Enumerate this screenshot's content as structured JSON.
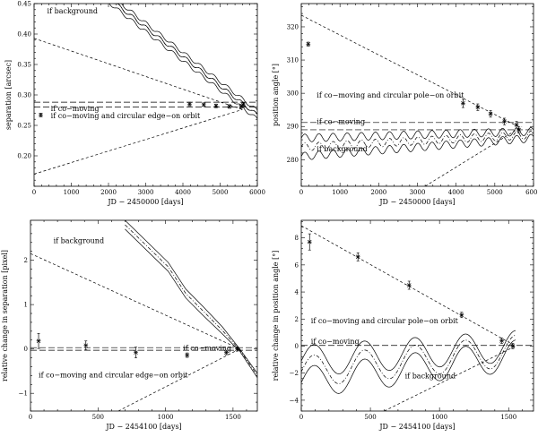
{
  "chart_data": [
    {
      "type": "line",
      "title": "",
      "xlabel": "JD − 2450000 [days]",
      "ylabel": "separation [arcsec]",
      "xlim": [
        0,
        6000
      ],
      "ylim": [
        0.15,
        0.45
      ],
      "xticks": [
        0,
        1000,
        2000,
        3000,
        4000,
        5000,
        6000
      ],
      "xtick_labels": [
        "0",
        "1000",
        "2000",
        "3000",
        "4000",
        "5000",
        "6000"
      ],
      "yticks": [
        0.2,
        0.25,
        0.3,
        0.35,
        0.4,
        0.45
      ],
      "ytick_labels": [
        "0.20",
        "0.25",
        "0.30",
        "0.35",
        "0.40",
        "0.45"
      ],
      "annotations": [
        {
          "text": "if background",
          "x": 350,
          "y": 0.438
        },
        {
          "text": "if co−moving",
          "x": 450,
          "y": 0.278
        },
        {
          "text": "if co−moving and circular edge−on orbit",
          "x": 450,
          "y": 0.266
        }
      ],
      "data_points": {
        "name": "measurements",
        "x": [
          180,
          4180,
          4560,
          4890,
          5250,
          5560,
          5620
        ],
        "y": [
          0.267,
          0.285,
          0.284,
          0.282,
          0.281,
          0.281,
          0.284
        ],
        "yerr": [
          0.003,
          0.003,
          0.003,
          0.003,
          0.003,
          0.003,
          0.003
        ]
      },
      "series": [
        {
          "name": "background",
          "style": "solid",
          "x": [
            0,
            6000
          ],
          "y": [
            0.555,
            0.267
          ],
          "wiggle": 0.003,
          "period": 365
        },
        {
          "name": "background upper bound",
          "style": "solid",
          "x": [
            0,
            6000
          ],
          "y": [
            0.562,
            0.274
          ],
          "wiggle": 0.003,
          "period": 365
        },
        {
          "name": "background lower bound",
          "style": "solid",
          "x": [
            0,
            6000
          ],
          "y": [
            0.548,
            0.26
          ],
          "wiggle": 0.003,
          "period": 365
        },
        {
          "name": "background centre",
          "style": "dashdot",
          "x": [
            0,
            6000
          ],
          "y": [
            0.555,
            0.267
          ],
          "wiggle": 0.003,
          "period": 365
        },
        {
          "name": "co-moving upper",
          "style": "longdash",
          "x": [
            0,
            6000
          ],
          "y": [
            0.288,
            0.288
          ]
        },
        {
          "name": "co-moving lower",
          "style": "longdash",
          "x": [
            0,
            6000
          ],
          "y": [
            0.28,
            0.28
          ]
        },
        {
          "name": "edge-on orbit upper",
          "style": "dash",
          "x": [
            0,
            5600
          ],
          "y": [
            0.393,
            0.276
          ]
        },
        {
          "name": "edge-on orbit lower",
          "style": "dash",
          "x": [
            0,
            5600
          ],
          "y": [
            0.17,
            0.276
          ]
        }
      ]
    },
    {
      "type": "line",
      "title": "",
      "xlabel": "JD − 2450000 [days]",
      "ylabel": "position angle [°]",
      "xlim": [
        0,
        6000
      ],
      "ylim": [
        272,
        327
      ],
      "xticks": [
        0,
        1000,
        2000,
        3000,
        4000,
        5000,
        6000
      ],
      "xtick_labels": [
        "0",
        "1000",
        "2000",
        "3000",
        "4000",
        "5000",
        "6000"
      ],
      "yticks": [
        280,
        290,
        300,
        310,
        320
      ],
      "ytick_labels": [
        "280",
        "290",
        "300",
        "310",
        "320"
      ],
      "annotations": [
        {
          "text": "if co−moving and circular pole−on orbit",
          "x": 400,
          "y": 299.5
        },
        {
          "text": "if co−moving",
          "x": 400,
          "y": 291.5
        },
        {
          "text": "if background",
          "x": 400,
          "y": 283.3
        }
      ],
      "data_points": {
        "name": "measurements",
        "x": [
          180,
          4180,
          4560,
          4890,
          5250,
          5560,
          5620
        ],
        "y": [
          314.8,
          297.0,
          295.8,
          293.8,
          291.5,
          290.5,
          289.0
        ],
        "yerr": [
          0.6,
          1.3,
          1.0,
          1.0,
          1.0,
          1.0,
          1.0
        ]
      },
      "series": [
        {
          "name": "background upper",
          "style": "solid",
          "x": [
            0,
            6000
          ],
          "y": [
            286.5,
            288.5
          ],
          "wiggle": 1.2,
          "period": 365
        },
        {
          "name": "background centre",
          "style": "dashdot",
          "x": [
            0,
            6000
          ],
          "y": [
            283.8,
            287.5
          ],
          "wiggle": 1.2,
          "period": 365
        },
        {
          "name": "background lower",
          "style": "solid",
          "x": [
            0,
            6000
          ],
          "y": [
            281.0,
            286.5
          ],
          "wiggle": 1.2,
          "period": 365
        },
        {
          "name": "co-moving upper",
          "style": "longdash",
          "x": [
            0,
            6000
          ],
          "y": [
            291.2,
            291.2
          ]
        },
        {
          "name": "co-moving lower",
          "style": "longdash",
          "x": [
            0,
            6000
          ],
          "y": [
            289.0,
            289.0
          ]
        },
        {
          "name": "pole-on orbit upper",
          "style": "dash",
          "x": [
            0,
            5600
          ],
          "y": [
            323.5,
            290.0
          ]
        },
        {
          "name": "pole-on orbit lower",
          "style": "dash",
          "x": [
            3200,
            5700
          ],
          "y": [
            272,
            290.0
          ]
        }
      ]
    },
    {
      "type": "line",
      "title": "",
      "xlabel": "JD − 2454100 [days]",
      "ylabel": "relative change in separation [pixel]",
      "xlim": [
        0,
        1680
      ],
      "ylim": [
        -1.4,
        2.9
      ],
      "xticks": [
        0,
        500,
        1000,
        1500
      ],
      "xtick_labels": [
        "0",
        "500",
        "1000",
        "1500"
      ],
      "yticks": [
        -1,
        0,
        1,
        2
      ],
      "ytick_labels": [
        "−1",
        "0",
        "1",
        "2"
      ],
      "annotations": [
        {
          "text": "if background",
          "x": 170,
          "y": 2.45
        },
        {
          "text": "if co−moving",
          "x": 1130,
          "y": 0.02
        },
        {
          "text": "if co−moving and circular edge−on orbit",
          "x": 60,
          "y": -0.58
        }
      ],
      "data_points": {
        "name": "measurements",
        "x": [
          60,
          410,
          780,
          1160,
          1450,
          1530
        ],
        "y": [
          0.18,
          0.08,
          -0.08,
          -0.14,
          -0.08,
          0.0
        ],
        "yerr": [
          0.17,
          0.1,
          0.12,
          0.05,
          0.05,
          0.05
        ]
      },
      "series": [
        {
          "name": "background upper",
          "style": "solid",
          "x": [
            700,
            1020,
            1150,
            1280,
            1420,
            1550,
            1680
          ],
          "y": [
            2.9,
            1.95,
            1.35,
            0.95,
            0.5,
            0.0,
            -0.55
          ]
        },
        {
          "name": "background centre",
          "style": "dashdot",
          "x": [
            700,
            1020,
            1150,
            1280,
            1420,
            1550,
            1680
          ],
          "y": [
            2.8,
            1.85,
            1.25,
            0.85,
            0.42,
            -0.02,
            -0.6
          ]
        },
        {
          "name": "background lower",
          "style": "solid",
          "x": [
            700,
            1020,
            1150,
            1280,
            1420,
            1550,
            1680
          ],
          "y": [
            2.7,
            1.75,
            1.15,
            0.75,
            0.34,
            -0.05,
            -0.65
          ]
        },
        {
          "name": "co-moving upper",
          "style": "longdash",
          "x": [
            0,
            1680
          ],
          "y": [
            0.03,
            0.03
          ]
        },
        {
          "name": "co-moving lower",
          "style": "longdash",
          "x": [
            0,
            1680
          ],
          "y": [
            -0.03,
            -0.03
          ]
        },
        {
          "name": "edge-on orbit upper",
          "style": "dash",
          "x": [
            0,
            1550
          ],
          "y": [
            2.15,
            0.0
          ]
        },
        {
          "name": "edge-on orbit lower",
          "style": "dash",
          "x": [
            650,
            1550
          ],
          "y": [
            -1.4,
            0.0
          ]
        }
      ]
    },
    {
      "type": "line",
      "title": "",
      "xlabel": "JD − 2454100 [days]",
      "ylabel": "relative change in position angle [°]",
      "xlim": [
        0,
        1680
      ],
      "ylim": [
        -4.8,
        9.3
      ],
      "xticks": [
        0,
        500,
        1000,
        1500
      ],
      "xtick_labels": [
        "0",
        "500",
        "1000",
        "1500"
      ],
      "yticks": [
        -4,
        -2,
        0,
        2,
        4,
        6,
        8
      ],
      "ytick_labels": [
        "−4",
        "−2",
        "0",
        "2",
        "4",
        "6",
        "8"
      ],
      "annotations": [
        {
          "text": "if co−moving and circular pole−on orbit",
          "x": 70,
          "y": 1.9
        },
        {
          "text": "if co−moving",
          "x": 70,
          "y": 0.35
        },
        {
          "text": "if background",
          "x": 750,
          "y": -2.2
        }
      ],
      "data_points": {
        "name": "measurements",
        "x": [
          60,
          410,
          780,
          1160,
          1450,
          1530
        ],
        "y": [
          7.7,
          6.6,
          4.5,
          2.3,
          0.4,
          0.0
        ],
        "yerr": [
          0.6,
          0.3,
          0.3,
          0.2,
          0.2,
          0.2
        ]
      },
      "series": [
        {
          "name": "background upper",
          "style": "solid",
          "x": [
            0,
            1550
          ],
          "y": [
            -1.1,
            0.0
          ],
          "wiggle": 1.15,
          "period": 365
        },
        {
          "name": "background centre",
          "style": "dashdot",
          "x": [
            0,
            1550
          ],
          "y": [
            -1.9,
            -0.35
          ],
          "wiggle": 1.15,
          "period": 365
        },
        {
          "name": "background lower",
          "style": "solid",
          "x": [
            0,
            1550
          ],
          "y": [
            -2.7,
            -0.7
          ],
          "wiggle": 1.15,
          "period": 365
        },
        {
          "name": "co-moving",
          "style": "longdash",
          "x": [
            0,
            1680
          ],
          "y": [
            0.05,
            0.05
          ]
        },
        {
          "name": "pole-on orbit upper",
          "style": "dash",
          "x": [
            0,
            1550
          ],
          "y": [
            8.9,
            0.0
          ]
        },
        {
          "name": "pole-on orbit lower",
          "style": "dash",
          "x": [
            600,
            1550
          ],
          "y": [
            -4.8,
            0.0
          ]
        }
      ]
    }
  ]
}
